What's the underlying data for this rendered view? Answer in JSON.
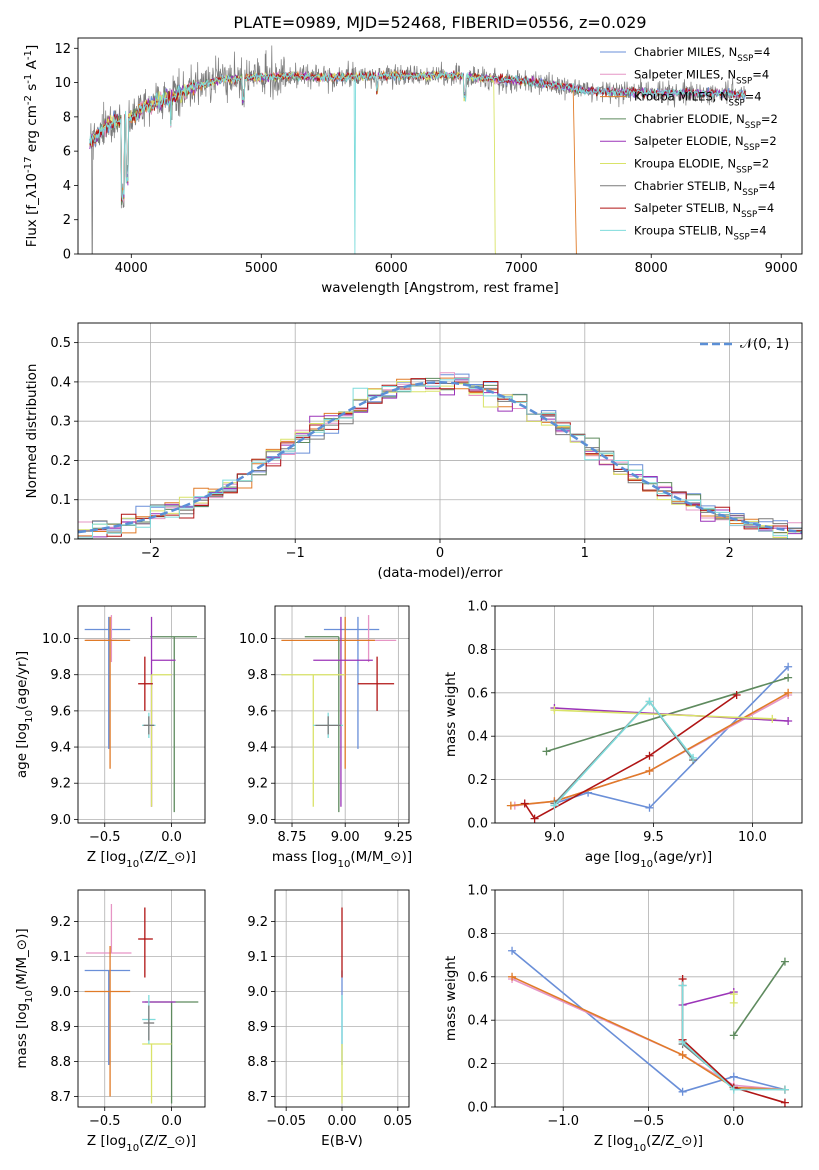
{
  "figure": {
    "title": "PLATE=0989, MJD=52468, FIBERID=0556, z=0.029"
  },
  "series": [
    {
      "name": "Chabrier MILES, N$_{SSP}$=4",
      "color": "#6a8fd8"
    },
    {
      "name": "Salpeter MILES, N$_{SSP}$=4",
      "color": "#e695c5"
    },
    {
      "name": "Kroupa MILES, N$_{SSP}$=4",
      "color": "#e07b28"
    },
    {
      "name": "Chabrier ELODIE, N$_{SSP}$=2",
      "color": "#5e8a5e"
    },
    {
      "name": "Salpeter ELODIE, N$_{SSP}$=2",
      "color": "#9b34b8"
    },
    {
      "name": "Kroupa ELODIE, N$_{SSP}$=2",
      "color": "#d9e368"
    },
    {
      "name": "Chabrier STELIB, N$_{SSP}$=4",
      "color": "#7a7a7a"
    },
    {
      "name": "Salpeter STELIB, N$_{SSP}$=4",
      "color": "#b01515"
    },
    {
      "name": "Kroupa STELIB, N$_{SSP}$=4",
      "color": "#7fdcdc"
    }
  ],
  "chart_data": [
    {
      "id": "spectrum",
      "type": "line",
      "xlabel": "wavelength [Angstrom, rest frame]",
      "ylabel": "Flux [f$_\\lambda$10$^{-17}$ erg cm$^{-2}$ s$^{-1}$ A$^{-1}$]",
      "xlim": [
        3590,
        9160
      ],
      "ylim": [
        0,
        12.6
      ],
      "xticks": [
        4000,
        5000,
        6000,
        7000,
        8000,
        9000
      ],
      "yticks": [
        0,
        2,
        4,
        6,
        8,
        10,
        12
      ],
      "continuum_anchors": [
        [
          3680,
          6.4
        ],
        [
          3800,
          7.5
        ],
        [
          3900,
          7.8
        ],
        [
          4000,
          7.9
        ],
        [
          4100,
          8.6
        ],
        [
          4300,
          9.1
        ],
        [
          4500,
          9.8
        ],
        [
          4700,
          10.2
        ],
        [
          5000,
          10.3
        ],
        [
          5200,
          10.4
        ],
        [
          5500,
          10.3
        ],
        [
          6000,
          10.4
        ],
        [
          6500,
          10.4
        ],
        [
          6800,
          10.2
        ],
        [
          7000,
          10.1
        ],
        [
          7300,
          9.8
        ],
        [
          7500,
          9.5
        ],
        [
          8000,
          9.4
        ],
        [
          8500,
          9.4
        ],
        [
          8700,
          9.3
        ]
      ],
      "data_range_angstrom": [
        3680,
        8730
      ],
      "noisy_series_range_angstrom": [
        3680,
        8730
      ],
      "dropouts": [
        {
          "series": 6,
          "x": 3700,
          "y": 0
        },
        {
          "series": 8,
          "x": 5720,
          "y": 0
        },
        {
          "series": 5,
          "x": 6800,
          "y": 0
        },
        {
          "series": 2,
          "x": 7420,
          "y": 0
        }
      ],
      "legend_position": "upper right"
    },
    {
      "id": "residuals",
      "type": "step",
      "xlabel": "(data-model)/error",
      "ylabel": "Normed distribution",
      "xlim": [
        -2.5,
        2.5
      ],
      "ylim": [
        0,
        0.55
      ],
      "xticks": [
        -2,
        -1,
        0,
        1,
        2
      ],
      "yticks": [
        0.0,
        0.1,
        0.2,
        0.3,
        0.4,
        0.5
      ],
      "bin_width": 0.1,
      "reference_label": "$\\mathcal{N}(0,1)$",
      "reference_color": "#5b8fd6",
      "grid": true
    },
    {
      "id": "age_vs_z",
      "type": "errorbar",
      "xlabel": "Z [log$_{10}$(Z/Z$_\\odot$)]",
      "ylabel": "age  [log$_{10}$(age/yr)]",
      "xlim": [
        -0.7,
        0.25
      ],
      "ylim": [
        8.98,
        10.18
      ],
      "xticks": [
        -0.5,
        0.0
      ],
      "yticks": [
        9.0,
        9.2,
        9.4,
        9.6,
        9.8,
        10.0
      ],
      "points": [
        {
          "s": 0,
          "x": -0.47,
          "xerr": [
            0.18,
            0.16
          ],
          "y": 10.05,
          "yerr": [
            0.66,
            0.07
          ]
        },
        {
          "s": 1,
          "x": -0.45,
          "xerr": [
            0.19,
            0.04
          ],
          "y": 9.99,
          "yerr": [
            0.12,
            0.14
          ]
        },
        {
          "s": 2,
          "x": -0.46,
          "xerr": [
            0.19,
            0.15
          ],
          "y": 9.99,
          "yerr": [
            0.71,
            0.13
          ]
        },
        {
          "s": 3,
          "x": 0.02,
          "xerr": [
            0.18,
            0.17
          ],
          "y": 10.01,
          "yerr": [
            0.97,
            0.0
          ]
        },
        {
          "s": 4,
          "x": -0.15,
          "xerr": [
            0.0,
            0.18
          ],
          "y": 9.88,
          "yerr": [
            0.81,
            0.24
          ]
        },
        {
          "s": 5,
          "x": -0.15,
          "xerr": [
            0.0,
            0.15
          ],
          "y": 9.8,
          "yerr": [
            0.73,
            0.0
          ]
        },
        {
          "s": 7,
          "x": -0.2,
          "xerr": [
            0.05,
            0.06
          ],
          "y": 9.75,
          "yerr": [
            0.15,
            0.15
          ]
        },
        {
          "s": 8,
          "x": -0.17,
          "xerr": [
            0.05,
            0.05
          ],
          "y": 9.52,
          "yerr": [
            0.07,
            0.07
          ]
        },
        {
          "s": 6,
          "x": -0.17,
          "xerr": [
            0.04,
            0.04
          ],
          "y": 9.52,
          "yerr": [
            0.05,
            0.05
          ]
        }
      ]
    },
    {
      "id": "age_vs_mass",
      "type": "errorbar",
      "xlabel": "mass [log$_{10}$(M/M$_\\odot$)]",
      "ylabel": "",
      "xlim": [
        8.67,
        9.3
      ],
      "ylim": [
        8.98,
        10.18
      ],
      "xticks": [
        8.75,
        9.0,
        9.25
      ],
      "yticks": [
        9.0,
        9.2,
        9.4,
        9.6,
        9.8,
        10.0
      ],
      "points": [
        {
          "s": 0,
          "x": 9.06,
          "xerr": [
            0.16,
            0.1
          ],
          "y": 10.05,
          "yerr": [
            0.66,
            0.07
          ]
        },
        {
          "s": 1,
          "x": 9.11,
          "xerr": [
            0.11,
            0.13
          ],
          "y": 9.99,
          "yerr": [
            0.12,
            0.14
          ]
        },
        {
          "s": 2,
          "x": 9.0,
          "xerr": [
            0.3,
            0.14
          ],
          "y": 9.99,
          "yerr": [
            0.71,
            0.13
          ]
        },
        {
          "s": 3,
          "x": 8.97,
          "xerr": [
            0.16,
            0.0
          ],
          "y": 10.01,
          "yerr": [
            0.97,
            0.0
          ]
        },
        {
          "s": 4,
          "x": 8.98,
          "xerr": [
            0.13,
            0.15
          ],
          "y": 9.88,
          "yerr": [
            0.81,
            0.24
          ]
        },
        {
          "s": 5,
          "x": 8.85,
          "xerr": [
            0.15,
            0.15
          ],
          "y": 9.8,
          "yerr": [
            0.73,
            0.0
          ]
        },
        {
          "s": 7,
          "x": 9.15,
          "xerr": [
            0.09,
            0.08
          ],
          "y": 9.75,
          "yerr": [
            0.15,
            0.15
          ]
        },
        {
          "s": 8,
          "x": 8.92,
          "xerr": [
            0.07,
            0.07
          ],
          "y": 9.52,
          "yerr": [
            0.07,
            0.07
          ]
        },
        {
          "s": 6,
          "x": 8.92,
          "xerr": [
            0.06,
            0.06
          ],
          "y": 9.52,
          "yerr": [
            0.05,
            0.05
          ]
        }
      ]
    },
    {
      "id": "weight_vs_age",
      "type": "line",
      "xlabel": "age  [log$_{10}$(age/yr)]",
      "ylabel": "mass weight",
      "xlim": [
        8.7,
        10.25
      ],
      "ylim": [
        0,
        1.0
      ],
      "xticks": [
        9.0,
        9.5,
        10.0
      ],
      "yticks": [
        0.0,
        0.2,
        0.4,
        0.6,
        0.8,
        1.0
      ],
      "grid": true,
      "series": [
        {
          "s": 0,
          "x": [
            9.0,
            9.17,
            9.48,
            10.18
          ],
          "y": [
            0.09,
            0.14,
            0.07,
            0.72
          ]
        },
        {
          "s": 1,
          "x": [
            8.8,
            9.0,
            9.48,
            10.18
          ],
          "y": [
            0.08,
            0.1,
            0.24,
            0.59
          ]
        },
        {
          "s": 2,
          "x": [
            8.78,
            9.0,
            9.48,
            10.18
          ],
          "y": [
            0.08,
            0.1,
            0.24,
            0.6
          ]
        },
        {
          "s": 3,
          "x": [
            8.96,
            10.18
          ],
          "y": [
            0.33,
            0.67
          ]
        },
        {
          "s": 4,
          "x": [
            9.0,
            10.18
          ],
          "y": [
            0.53,
            0.47
          ]
        },
        {
          "s": 5,
          "x": [
            9.0,
            10.1
          ],
          "y": [
            0.52,
            0.48
          ]
        },
        {
          "s": 6,
          "x": [
            9.0,
            9.48,
            9.7
          ],
          "y": [
            0.09,
            0.56,
            0.29
          ]
        },
        {
          "s": 7,
          "x": [
            8.85,
            8.9,
            9.48,
            9.92
          ],
          "y": [
            0.09,
            0.02,
            0.31,
            0.59
          ]
        },
        {
          "s": 8,
          "x": [
            9.0,
            9.48,
            9.7
          ],
          "y": [
            0.08,
            0.56,
            0.3
          ]
        }
      ]
    },
    {
      "id": "mass_vs_z",
      "type": "errorbar",
      "xlabel": "Z [log$_{10}$(Z/Z$_\\odot$)]",
      "ylabel": "mass [log$_{10}$(M/M$_\\odot$)]",
      "xlim": [
        -0.7,
        0.25
      ],
      "ylim": [
        8.67,
        9.29
      ],
      "xticks": [
        -0.5,
        0.0
      ],
      "yticks": [
        8.7,
        8.8,
        8.9,
        9.0,
        9.1,
        9.2
      ],
      "points": [
        {
          "s": 0,
          "x": -0.47,
          "xerr": [
            0.18,
            0.16
          ],
          "y": 9.06,
          "yerr": [
            0.27,
            0.0
          ]
        },
        {
          "s": 1,
          "x": -0.45,
          "xerr": [
            0.19,
            0.15
          ],
          "y": 9.11,
          "yerr": [
            0.0,
            0.14
          ]
        },
        {
          "s": 2,
          "x": -0.46,
          "xerr": [
            0.19,
            0.15
          ],
          "y": 9.0,
          "yerr": [
            0.3,
            0.13
          ]
        },
        {
          "s": 3,
          "x": 0.0,
          "xerr": [
            0.2,
            0.2
          ],
          "y": 8.97,
          "yerr": [
            0.29,
            0.0
          ]
        },
        {
          "s": 4,
          "x": -0.15,
          "xerr": [
            0.07,
            0.18
          ],
          "y": 8.97,
          "yerr": [
            0.0,
            0.0
          ]
        },
        {
          "s": 5,
          "x": -0.15,
          "xerr": [
            0.07,
            0.15
          ],
          "y": 8.85,
          "yerr": [
            0.17,
            0.0
          ]
        },
        {
          "s": 7,
          "x": -0.2,
          "xerr": [
            0.05,
            0.06
          ],
          "y": 9.15,
          "yerr": [
            0.11,
            0.09
          ]
        },
        {
          "s": 8,
          "x": -0.17,
          "xerr": [
            0.05,
            0.05
          ],
          "y": 8.92,
          "yerr": [
            0.07,
            0.07
          ]
        },
        {
          "s": 6,
          "x": -0.17,
          "xerr": [
            0.04,
            0.04
          ],
          "y": 8.91,
          "yerr": [
            0.05,
            0.05
          ]
        }
      ]
    },
    {
      "id": "mass_vs_ebv",
      "type": "errorbar",
      "xlabel": "E(B-V)",
      "ylabel": "",
      "xlim": [
        -0.06,
        0.06
      ],
      "ylim": [
        8.67,
        9.29
      ],
      "xticks": [
        -0.05,
        0.0,
        0.05
      ],
      "yticks": [
        8.7,
        8.8,
        8.9,
        9.0,
        9.1,
        9.2
      ],
      "points": [
        {
          "s": 0,
          "x": 0.0,
          "xerr": [
            0,
            0
          ],
          "y": 9.06,
          "yerr": [
            0.27,
            0.0
          ]
        },
        {
          "s": 5,
          "x": 0.0,
          "xerr": [
            0,
            0
          ],
          "y": 8.85,
          "yerr": [
            0.17,
            0.0
          ]
        },
        {
          "s": 8,
          "x": 0.0,
          "xerr": [
            0,
            0
          ],
          "y": 8.92,
          "yerr": [
            0.07,
            0.07
          ]
        },
        {
          "s": 7,
          "x": 0.0,
          "xerr": [
            0,
            0
          ],
          "y": 9.15,
          "yerr": [
            0.11,
            0.09
          ]
        }
      ]
    },
    {
      "id": "weight_vs_z",
      "type": "line",
      "xlabel": "Z [log$_{10}$(Z/Z$_\\odot$)]",
      "ylabel": "mass weight",
      "xlim": [
        -1.4,
        0.4
      ],
      "ylim": [
        0,
        1.0
      ],
      "xticks": [
        -1.0,
        -0.5,
        0.0
      ],
      "yticks": [
        0.0,
        0.2,
        0.4,
        0.6,
        0.8,
        1.0
      ],
      "grid": true,
      "series": [
        {
          "s": 0,
          "x": [
            -1.3,
            -0.3,
            0.0,
            0.3
          ],
          "y": [
            0.72,
            0.07,
            0.14,
            0.08
          ]
        },
        {
          "s": 1,
          "x": [
            -1.3,
            -0.3,
            0.0,
            0.3
          ],
          "y": [
            0.59,
            0.24,
            0.1,
            0.08
          ]
        },
        {
          "s": 2,
          "x": [
            -1.3,
            -0.3,
            0.0,
            0.3
          ],
          "y": [
            0.6,
            0.24,
            0.09,
            0.08
          ]
        },
        {
          "s": 3,
          "x": [
            0.0,
            0.3
          ],
          "y": [
            0.33,
            0.67
          ]
        },
        {
          "s": 4,
          "x": [
            -0.3,
            0.0
          ],
          "y": [
            0.47,
            0.53
          ]
        },
        {
          "s": 5,
          "x": [
            0.0,
            0.0
          ],
          "y": [
            0.48,
            0.52
          ]
        },
        {
          "s": 6,
          "x": [
            -0.3,
            -0.3,
            0.0
          ],
          "y": [
            0.56,
            0.29,
            0.09
          ]
        },
        {
          "s": 7,
          "x": [
            -0.3,
            -0.3,
            0.0,
            0.3
          ],
          "y": [
            0.59,
            0.31,
            0.09,
            0.02
          ]
        },
        {
          "s": 8,
          "x": [
            -0.3,
            -0.3,
            0.0,
            0.3
          ],
          "y": [
            0.56,
            0.3,
            0.08,
            0.08
          ]
        }
      ]
    }
  ]
}
